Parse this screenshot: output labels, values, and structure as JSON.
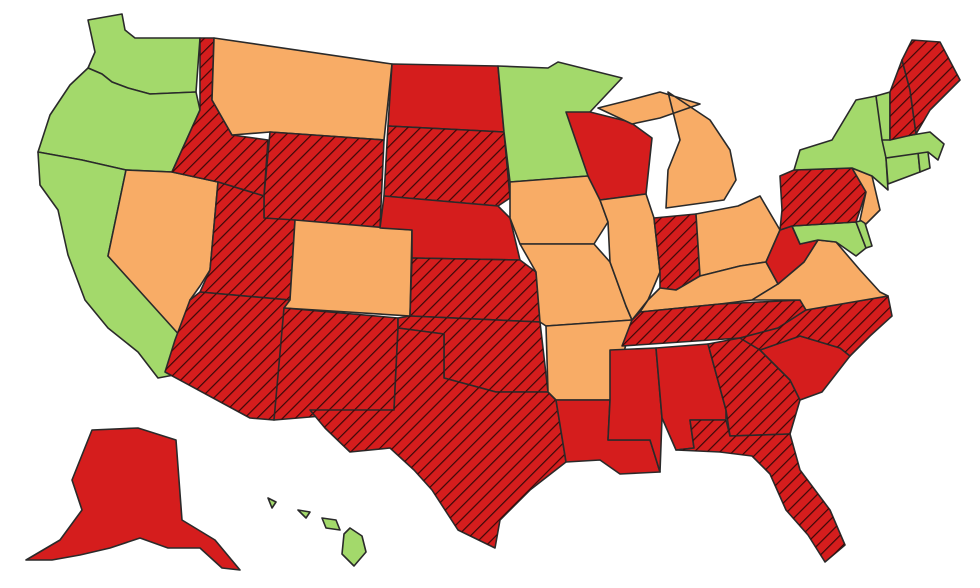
{
  "colors": {
    "green": "#a3d96b",
    "orange": "#f8ac66",
    "red": "#d51d1d",
    "hatch_line": "#3a0808",
    "border": "#2a2a2a"
  },
  "states": [
    {
      "id": "WA",
      "category": "green",
      "hatched": false
    },
    {
      "id": "OR",
      "category": "green",
      "hatched": false
    },
    {
      "id": "CA",
      "category": "green",
      "hatched": false
    },
    {
      "id": "NV",
      "category": "orange",
      "hatched": false
    },
    {
      "id": "ID",
      "category": "red",
      "hatched": true
    },
    {
      "id": "MT",
      "category": "orange",
      "hatched": false
    },
    {
      "id": "WY",
      "category": "red",
      "hatched": true
    },
    {
      "id": "UT",
      "category": "red",
      "hatched": true
    },
    {
      "id": "AZ",
      "category": "red",
      "hatched": true
    },
    {
      "id": "CO",
      "category": "orange",
      "hatched": false
    },
    {
      "id": "NM",
      "category": "red",
      "hatched": true
    },
    {
      "id": "ND",
      "category": "red",
      "hatched": false
    },
    {
      "id": "SD",
      "category": "red",
      "hatched": true
    },
    {
      "id": "NE",
      "category": "red",
      "hatched": false
    },
    {
      "id": "KS",
      "category": "red",
      "hatched": true
    },
    {
      "id": "OK",
      "category": "red",
      "hatched": true
    },
    {
      "id": "TX",
      "category": "red",
      "hatched": true
    },
    {
      "id": "MN",
      "category": "green",
      "hatched": false
    },
    {
      "id": "IA",
      "category": "orange",
      "hatched": false
    },
    {
      "id": "MO",
      "category": "orange",
      "hatched": false
    },
    {
      "id": "AR",
      "category": "orange",
      "hatched": false
    },
    {
      "id": "LA",
      "category": "red",
      "hatched": false
    },
    {
      "id": "WI",
      "category": "red",
      "hatched": false
    },
    {
      "id": "IL",
      "category": "orange",
      "hatched": false
    },
    {
      "id": "MI",
      "category": "orange",
      "hatched": false
    },
    {
      "id": "IN",
      "category": "red",
      "hatched": true
    },
    {
      "id": "OH",
      "category": "orange",
      "hatched": false
    },
    {
      "id": "KY",
      "category": "orange",
      "hatched": false
    },
    {
      "id": "TN",
      "category": "red",
      "hatched": true
    },
    {
      "id": "MS",
      "category": "red",
      "hatched": false
    },
    {
      "id": "AL",
      "category": "red",
      "hatched": false
    },
    {
      "id": "GA",
      "category": "red",
      "hatched": true
    },
    {
      "id": "FL",
      "category": "red",
      "hatched": true
    },
    {
      "id": "SC",
      "category": "red",
      "hatched": false
    },
    {
      "id": "NC",
      "category": "red",
      "hatched": true
    },
    {
      "id": "VA",
      "category": "orange",
      "hatched": false
    },
    {
      "id": "WV",
      "category": "red",
      "hatched": false
    },
    {
      "id": "MD",
      "category": "green",
      "hatched": false
    },
    {
      "id": "DE",
      "category": "green",
      "hatched": false
    },
    {
      "id": "PA",
      "category": "red",
      "hatched": true
    },
    {
      "id": "NJ",
      "category": "orange",
      "hatched": false
    },
    {
      "id": "NY",
      "category": "green",
      "hatched": false
    },
    {
      "id": "CT",
      "category": "green",
      "hatched": false
    },
    {
      "id": "RI",
      "category": "green",
      "hatched": false
    },
    {
      "id": "MA",
      "category": "green",
      "hatched": false
    },
    {
      "id": "VT",
      "category": "green",
      "hatched": false
    },
    {
      "id": "NH",
      "category": "red",
      "hatched": true
    },
    {
      "id": "ME",
      "category": "red",
      "hatched": true
    },
    {
      "id": "AK",
      "category": "red",
      "hatched": false
    },
    {
      "id": "HI",
      "category": "green",
      "hatched": false
    }
  ]
}
